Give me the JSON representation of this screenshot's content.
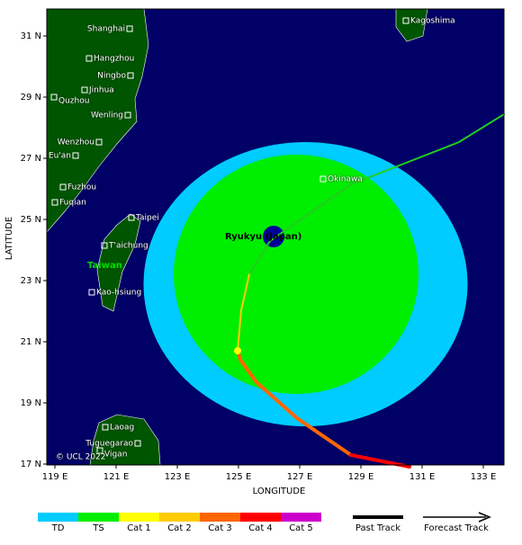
{
  "map": {
    "axis_labels": {
      "y": "LATITUDE",
      "x": "LONGITUDE"
    },
    "lat_ticks": [
      "31 N",
      "29 N",
      "27 N",
      "25 N",
      "23 N",
      "21 N",
      "19 N",
      "17 N"
    ],
    "lon_ticks": [
      "119 E",
      "121 E",
      "123 E",
      "125 E",
      "127 E",
      "129 E",
      "131 E",
      "133 E"
    ],
    "places": {
      "shanghai": "Shanghai",
      "hangzhou": "Hangzhou",
      "ningbo": "Ningbo",
      "jinhua": "Jinhua",
      "quzhou": "Quzhou",
      "wenling": "Wenling",
      "wenzhou": "Wenzhou",
      "euan": "Eu'an",
      "fuzhou": "Fuzhou",
      "fuqian": "Fuqian",
      "taipei": "Taipei",
      "taichung": "T'aichung",
      "kaohsiung": "Kao-hsiung",
      "taiwan": "Taiwan",
      "okinawa": "Okinawa",
      "kagoshima": "Kagoshima",
      "ryukyu": "Ryukyu (Japan)",
      "laoag": "Laoag",
      "tuguegarao": "Tuguegarao",
      "vigan": "Vigan"
    },
    "copyright": "© UCL 2022"
  },
  "legend": {
    "categories": [
      "TD",
      "TS",
      "Cat 1",
      "Cat 2",
      "Cat 3",
      "Cat 4",
      "Cat 5"
    ],
    "colors": [
      "#00ccff",
      "#00ee00",
      "#ffff00",
      "#ffcc00",
      "#ff6600",
      "#ff0000",
      "#cc00cc"
    ],
    "past": "Past Track",
    "forecast": "Forecast Track"
  }
}
